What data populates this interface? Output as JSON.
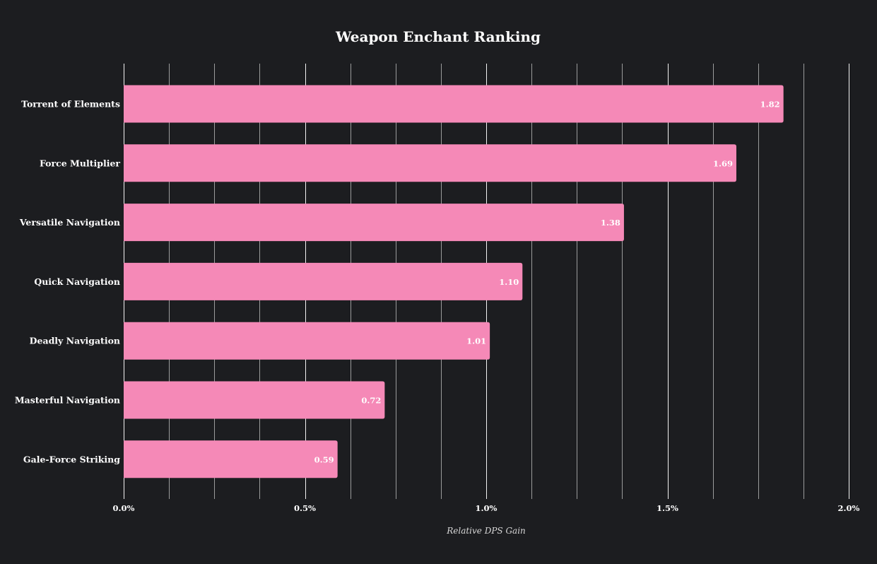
{
  "chart_data": {
    "type": "bar",
    "orientation": "horizontal",
    "title": "Weapon Enchant Ranking",
    "xlabel": "Relative DPS Gain",
    "ylabel": "",
    "xlim": [
      0,
      2.0
    ],
    "x_tick_values": [
      0.0,
      0.5,
      1.0,
      1.5,
      2.0
    ],
    "x_tick_labels": [
      "0.0%",
      "0.5%",
      "1.0%",
      "1.5%",
      "2.0%"
    ],
    "minor_grid_step": 0.125,
    "grid": true,
    "categories": [
      "Torrent of Elements",
      "Force Multiplier",
      "Versatile Navigation",
      "Quick Navigation",
      "Deadly Navigation",
      "Masterful Navigation",
      "Gale-Force Striking"
    ],
    "values": [
      1.82,
      1.69,
      1.38,
      1.1,
      1.01,
      0.72,
      0.59
    ],
    "value_labels": [
      "1.82",
      "1.69",
      "1.38",
      "1.10",
      "1.01",
      "0.72",
      "0.59"
    ],
    "bar_color": "#f589b7",
    "background_color": "#1c1d20"
  }
}
